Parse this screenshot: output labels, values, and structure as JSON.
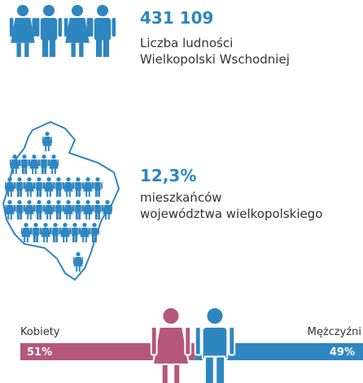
{
  "population": {
    "value": "431 109",
    "line1": "Liczba ludności",
    "line2": "Wielkopolski Wschodniej"
  },
  "share": {
    "value": "12,3%",
    "line1": "mieszkańców",
    "line2": "województwa wielkopolskiego"
  },
  "gender": {
    "women": {
      "name": "Kobiety",
      "value": 51,
      "label": "51%",
      "color": "#b5577a"
    },
    "men": {
      "name": "Mężczyźni",
      "value": 49,
      "label": "49%",
      "color": "#2e86c1"
    }
  }
}
